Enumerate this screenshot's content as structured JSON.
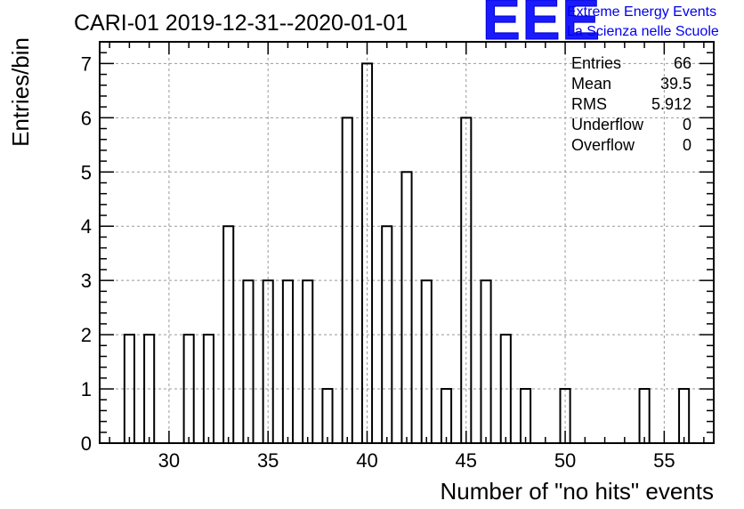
{
  "chart_data": {
    "type": "bar",
    "title": "CARI-01 2019-12-31--2020-01-01",
    "xlabel": "Number of \"no hits\" events",
    "ylabel": "Entries/bin",
    "xlim": [
      26.5,
      57.5
    ],
    "ylim": [
      0,
      7.4
    ],
    "bin_width": 0.5,
    "x_ticks": [
      30,
      35,
      40,
      45,
      50,
      55
    ],
    "y_ticks": [
      0,
      1,
      2,
      3,
      4,
      5,
      6,
      7
    ],
    "grid": true,
    "bins": [
      {
        "x": 28,
        "count": 2
      },
      {
        "x": 29,
        "count": 2
      },
      {
        "x": 31,
        "count": 2
      },
      {
        "x": 32,
        "count": 2
      },
      {
        "x": 33,
        "count": 4
      },
      {
        "x": 34,
        "count": 3
      },
      {
        "x": 35,
        "count": 3
      },
      {
        "x": 36,
        "count": 3
      },
      {
        "x": 37,
        "count": 3
      },
      {
        "x": 38,
        "count": 1
      },
      {
        "x": 39,
        "count": 6
      },
      {
        "x": 40,
        "count": 7
      },
      {
        "x": 41,
        "count": 4
      },
      {
        "x": 42,
        "count": 5
      },
      {
        "x": 43,
        "count": 3
      },
      {
        "x": 44,
        "count": 1
      },
      {
        "x": 45,
        "count": 6
      },
      {
        "x": 46,
        "count": 3
      },
      {
        "x": 47,
        "count": 2
      },
      {
        "x": 48,
        "count": 1
      },
      {
        "x": 50,
        "count": 1
      },
      {
        "x": 54,
        "count": 1
      },
      {
        "x": 56,
        "count": 1
      }
    ],
    "stats": [
      {
        "label": "Entries",
        "value": "66"
      },
      {
        "label": "Mean",
        "value": "39.5"
      },
      {
        "label": "RMS",
        "value": "5.912"
      },
      {
        "label": "Underflow",
        "value": "0"
      },
      {
        "label": "Overflow",
        "value": "0"
      }
    ]
  },
  "logo": {
    "mark": "EEE",
    "line1": "Extreme Energy Events",
    "line2": "La Scienza nelle Scuole",
    "color": "#0000ee"
  }
}
